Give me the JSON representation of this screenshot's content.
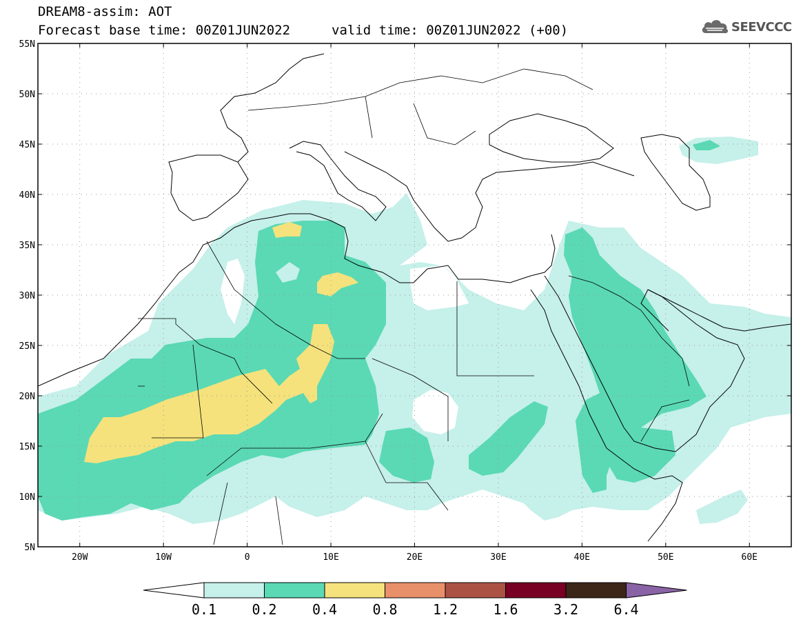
{
  "header": {
    "title_line1": "DREAM8-assim: AOT",
    "title_line2": "Forecast base time: 00Z01JUN2022",
    "valid_time": "valid time: 00Z01JUN2022 (+00)"
  },
  "logo": {
    "text": "SEEVCCC",
    "icon": "cloud-logo-icon"
  },
  "map": {
    "lat_ticks": [
      "55N",
      "50N",
      "45N",
      "40N",
      "35N",
      "30N",
      "25N",
      "20N",
      "15N",
      "10N",
      "5N"
    ],
    "lon_ticks": [
      "20W",
      "10W",
      "0",
      "10E",
      "20E",
      "30E",
      "40E",
      "50E",
      "60E"
    ],
    "lat_range": [
      5,
      55
    ],
    "lon_range": [
      -25,
      65
    ],
    "grid": "dotted"
  },
  "colorbar": {
    "labels": [
      "0.1",
      "0.2",
      "0.4",
      "0.8",
      "1.2",
      "1.6",
      "3.2",
      "6.4"
    ],
    "colors": [
      "#c6f0ea",
      "#5ad9b4",
      "#f5e27c",
      "#e8906a",
      "#ab5244",
      "#780024",
      "#3c2618"
    ],
    "below_color": "#ffffff",
    "above_color": "#8a63a6"
  }
}
